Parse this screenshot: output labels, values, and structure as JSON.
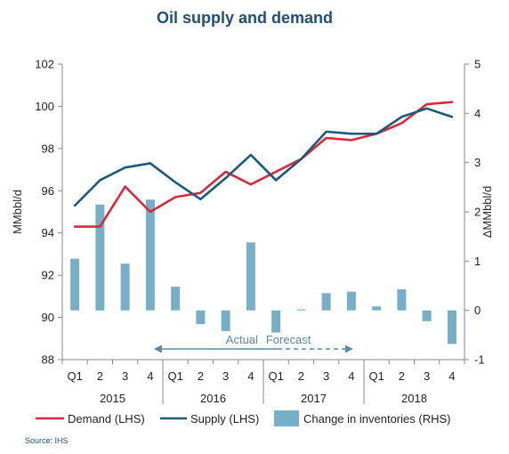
{
  "chart_data": {
    "type": "bar+line",
    "title": "Oil supply and demand",
    "categories": [
      "Q1",
      "2",
      "3",
      "4",
      "Q1",
      "2",
      "3",
      "4",
      "Q1",
      "2",
      "3",
      "4",
      "Q1",
      "2",
      "3",
      "4"
    ],
    "years": [
      "2015",
      "2016",
      "2017",
      "2018"
    ],
    "ylabel_left": "MMbbl/d",
    "ylabel_right": "ΔMMbbl/d",
    "ylim_left": [
      88,
      102
    ],
    "ylim_right": [
      -1,
      5
    ],
    "yticks_left": [
      88,
      90,
      92,
      94,
      96,
      98,
      100,
      102
    ],
    "yticks_right": [
      -1,
      0,
      1,
      2,
      3,
      4,
      5
    ],
    "series": [
      {
        "name": "Demand (LHS)",
        "type": "line",
        "axis": "left",
        "color": "#d9293d",
        "values": [
          94.3,
          94.3,
          96.2,
          95.0,
          95.7,
          95.9,
          96.9,
          96.3,
          96.9,
          97.5,
          98.5,
          98.4,
          98.7,
          99.2,
          100.1,
          100.2
        ]
      },
      {
        "name": "Supply (LHS)",
        "type": "line",
        "axis": "left",
        "color": "#1b5a7a",
        "values": [
          95.3,
          96.5,
          97.1,
          97.3,
          96.4,
          95.6,
          96.6,
          97.7,
          96.5,
          97.5,
          98.8,
          98.7,
          98.7,
          99.5,
          99.9,
          99.5
        ]
      },
      {
        "name": "Change in inventories (RHS)",
        "type": "bar",
        "axis": "right",
        "color": "#76afc7",
        "values": [
          1.05,
          2.15,
          0.95,
          2.25,
          0.48,
          -0.28,
          -0.42,
          1.38,
          -0.45,
          0.02,
          0.35,
          0.38,
          0.08,
          0.43,
          -0.22,
          -0.68
        ]
      }
    ],
    "annotations": {
      "actual_label": "Actual",
      "forecast_label": "Forecast"
    },
    "legend_position": "bottom",
    "grid": false,
    "source": "Source: IHS"
  }
}
